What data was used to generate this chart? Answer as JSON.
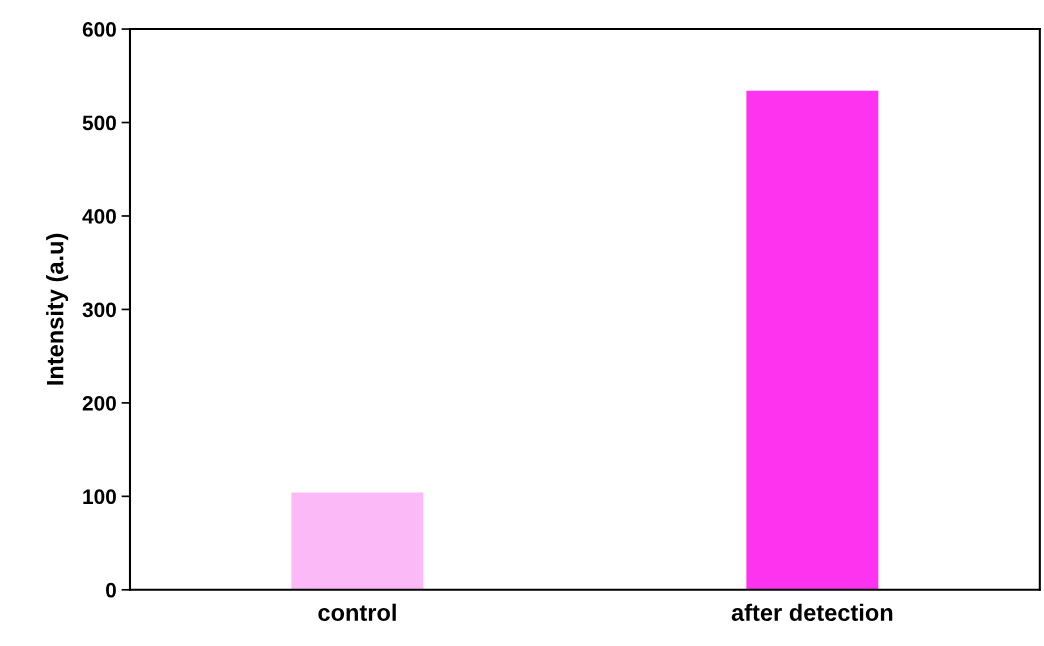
{
  "chart_data": {
    "type": "bar",
    "ylabel": "Intensity (a.u)",
    "categories": [
      "control",
      "after detection"
    ],
    "values": [
      104,
      534
    ],
    "colors": [
      "#fbb9f7",
      "#fd33f0"
    ],
    "ylim": [
      0,
      600
    ],
    "yticks": [
      0,
      100,
      200,
      300,
      400,
      500,
      600
    ],
    "grid": false
  }
}
